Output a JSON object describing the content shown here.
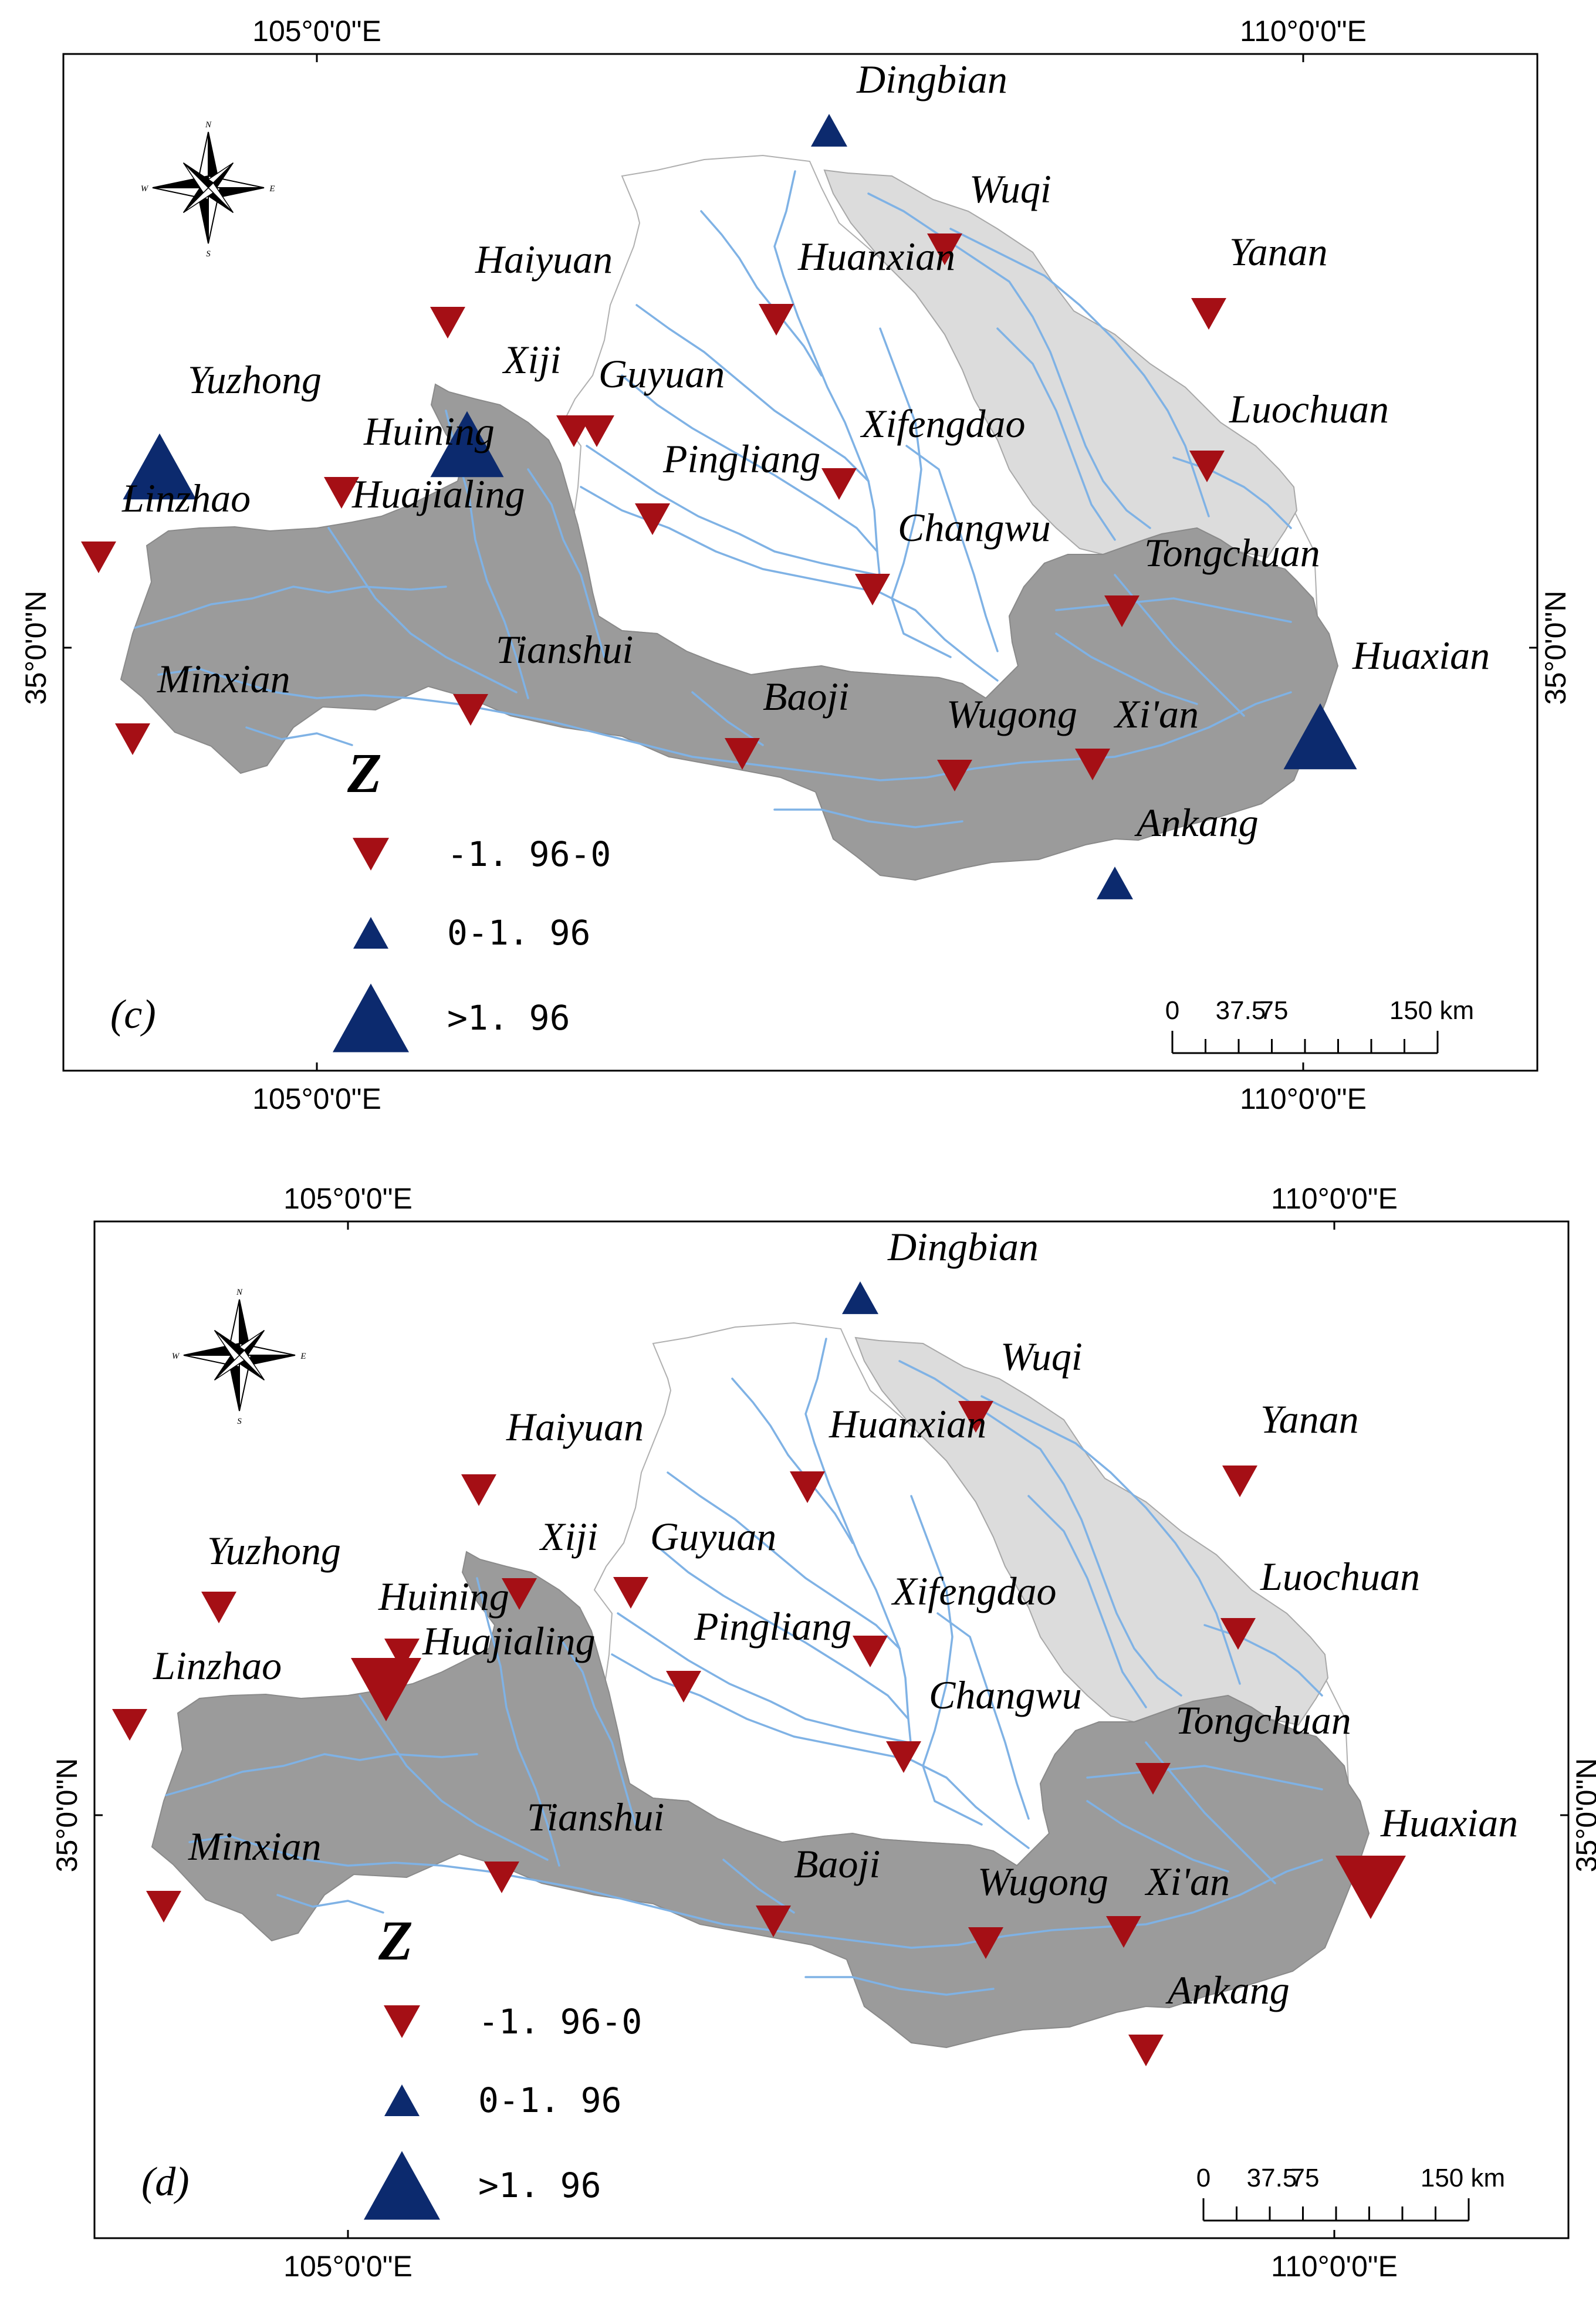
{
  "colors": {
    "decrease": "#a50f15",
    "increase": "#0c2a6e",
    "region_dark": "#9b9b9b",
    "region_light": "#dcdcdc",
    "region_white": "#ffffff",
    "river": "#7fb2e5",
    "frame": "#000000"
  },
  "graticule": {
    "lon_west": "105°0'0\"E",
    "lon_east": "110°0'0\"E",
    "lat": "35°0'0\"N"
  },
  "compass": {
    "n": "N",
    "s": "S",
    "e": "E",
    "w": "W"
  },
  "legend": {
    "title": "Z",
    "items": [
      {
        "symbol": "down-triangle",
        "label": "-1. 96-0"
      },
      {
        "symbol": "up-triangle-small",
        "label": "0-1. 96"
      },
      {
        "symbol": "up-triangle-large",
        "label": ">1. 96"
      }
    ]
  },
  "scale_bar": {
    "ticks": [
      "0",
      "37.5",
      "75"
    ],
    "end": "150 km"
  },
  "panels": [
    {
      "id": "c",
      "tag": "(c)",
      "stations": [
        {
          "name": "Dingbian",
          "trend": "up",
          "size": "small"
        },
        {
          "name": "Wuqi",
          "trend": "down",
          "size": "small"
        },
        {
          "name": "Yanan",
          "trend": "down",
          "size": "small"
        },
        {
          "name": "Huanxian",
          "trend": "down",
          "size": "small"
        },
        {
          "name": "Haiyuan",
          "trend": "down",
          "size": "small"
        },
        {
          "name": "Xiji",
          "trend": "down",
          "size": "small"
        },
        {
          "name": "Guyuan",
          "trend": "down",
          "size": "small"
        },
        {
          "name": "Yuzhong",
          "trend": "up",
          "size": "large"
        },
        {
          "name": "Huining",
          "trend": "up",
          "size": "large"
        },
        {
          "name": "Xifengdao",
          "trend": "down",
          "size": "small"
        },
        {
          "name": "Luochuan",
          "trend": "down",
          "size": "small"
        },
        {
          "name": "Pingliang",
          "trend": "down",
          "size": "small"
        },
        {
          "name": "Huajialing",
          "trend": "down",
          "size": "small"
        },
        {
          "name": "Linzhao",
          "trend": "down",
          "size": "small"
        },
        {
          "name": "Changwu",
          "trend": "down",
          "size": "small"
        },
        {
          "name": "Tongchuan",
          "trend": "down",
          "size": "small"
        },
        {
          "name": "Tianshui",
          "trend": "down",
          "size": "small"
        },
        {
          "name": "Minxian",
          "trend": "down",
          "size": "small"
        },
        {
          "name": "Baoji",
          "trend": "down",
          "size": "small"
        },
        {
          "name": "Wugong",
          "trend": "down",
          "size": "small"
        },
        {
          "name": "Xi'an",
          "trend": "down",
          "size": "small"
        },
        {
          "name": "Huaxian",
          "trend": "up",
          "size": "large"
        },
        {
          "name": "Ankang",
          "trend": "up",
          "size": "small"
        }
      ]
    },
    {
      "id": "d",
      "tag": "(d)",
      "stations": [
        {
          "name": "Dingbian",
          "trend": "up",
          "size": "small"
        },
        {
          "name": "Wuqi",
          "trend": "down",
          "size": "small"
        },
        {
          "name": "Yanan",
          "trend": "down",
          "size": "small"
        },
        {
          "name": "Huanxian",
          "trend": "down",
          "size": "small"
        },
        {
          "name": "Haiyuan",
          "trend": "down",
          "size": "small"
        },
        {
          "name": "Xiji",
          "trend": "down",
          "size": "small"
        },
        {
          "name": "Guyuan",
          "trend": "down",
          "size": "small"
        },
        {
          "name": "Yuzhong",
          "trend": "down",
          "size": "small"
        },
        {
          "name": "Huining",
          "trend": "down",
          "size": "small"
        },
        {
          "name": "Xifengdao",
          "trend": "down",
          "size": "small"
        },
        {
          "name": "Luochuan",
          "trend": "down",
          "size": "small"
        },
        {
          "name": "Pingliang",
          "trend": "down",
          "size": "small"
        },
        {
          "name": "Huajialing",
          "trend": "down",
          "size": "large"
        },
        {
          "name": "Linzhao",
          "trend": "down",
          "size": "small"
        },
        {
          "name": "Changwu",
          "trend": "down",
          "size": "small"
        },
        {
          "name": "Tongchuan",
          "trend": "down",
          "size": "small"
        },
        {
          "name": "Tianshui",
          "trend": "down",
          "size": "small"
        },
        {
          "name": "Minxian",
          "trend": "down",
          "size": "small"
        },
        {
          "name": "Baoji",
          "trend": "down",
          "size": "small"
        },
        {
          "name": "Wugong",
          "trend": "down",
          "size": "small"
        },
        {
          "name": "Xi'an",
          "trend": "down",
          "size": "small"
        },
        {
          "name": "Huaxian",
          "trend": "down",
          "size": "large"
        },
        {
          "name": "Ankang",
          "trend": "down",
          "size": "small"
        }
      ]
    }
  ]
}
